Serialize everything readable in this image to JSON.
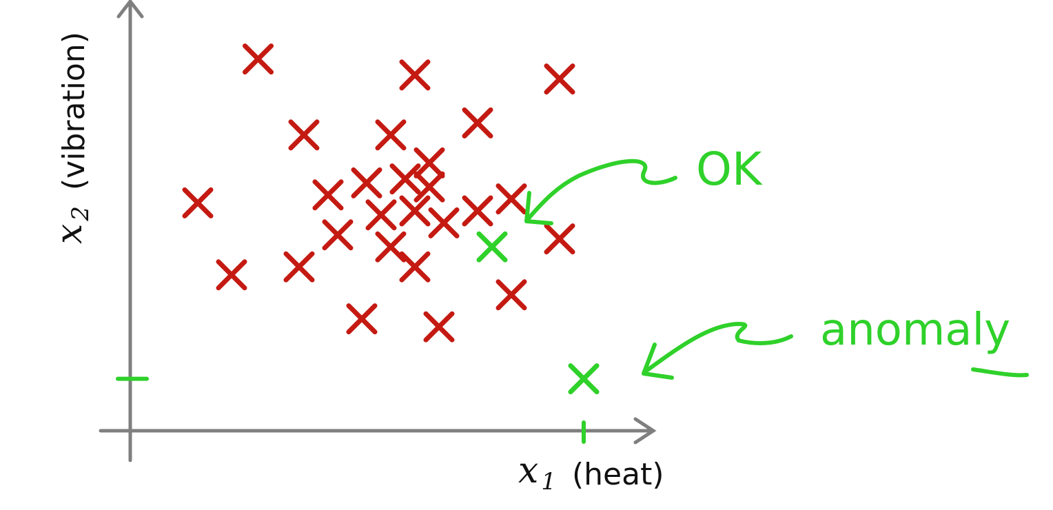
{
  "chart_data": {
    "type": "scatter",
    "xlabel": {
      "var": "x",
      "sub": "1",
      "text": "(heat)"
    },
    "ylabel": {
      "var": "x",
      "sub": "2",
      "text": "(vibration)"
    },
    "grid": false,
    "xlim": [
      0,
      10
    ],
    "ylim": [
      0,
      10
    ],
    "series": [
      {
        "marker": "x",
        "color": "#c41a12",
        "points": [
          [
            2.65,
            9.3
          ],
          [
            5.9,
            8.9
          ],
          [
            8.9,
            8.8
          ],
          [
            3.6,
            7.4
          ],
          [
            5.4,
            7.4
          ],
          [
            7.2,
            7.7
          ],
          [
            6.2,
            6.7
          ],
          [
            4.9,
            6.2
          ],
          [
            5.7,
            6.3
          ],
          [
            6.2,
            6.1
          ],
          [
            4.1,
            5.9
          ],
          [
            1.4,
            5.7
          ],
          [
            5.2,
            5.4
          ],
          [
            5.9,
            5.5
          ],
          [
            7.2,
            5.5
          ],
          [
            7.9,
            5.8
          ],
          [
            4.3,
            4.9
          ],
          [
            6.5,
            5.2
          ],
          [
            8.9,
            4.8
          ],
          [
            5.4,
            4.6
          ],
          [
            5.9,
            4.1
          ],
          [
            3.5,
            4.1
          ],
          [
            2.1,
            3.9
          ],
          [
            7.9,
            3.4
          ],
          [
            4.8,
            2.8
          ],
          [
            6.4,
            2.6
          ]
        ]
      },
      {
        "marker": "x",
        "color": "#2fd12a",
        "points": [
          [
            7.5,
            4.6
          ],
          [
            9.4,
            1.3
          ]
        ]
      }
    ],
    "annotations": [
      {
        "text": "OK",
        "color": "#2fd12a"
      },
      {
        "text": "anomaly",
        "color": "#2fd12a"
      }
    ]
  }
}
